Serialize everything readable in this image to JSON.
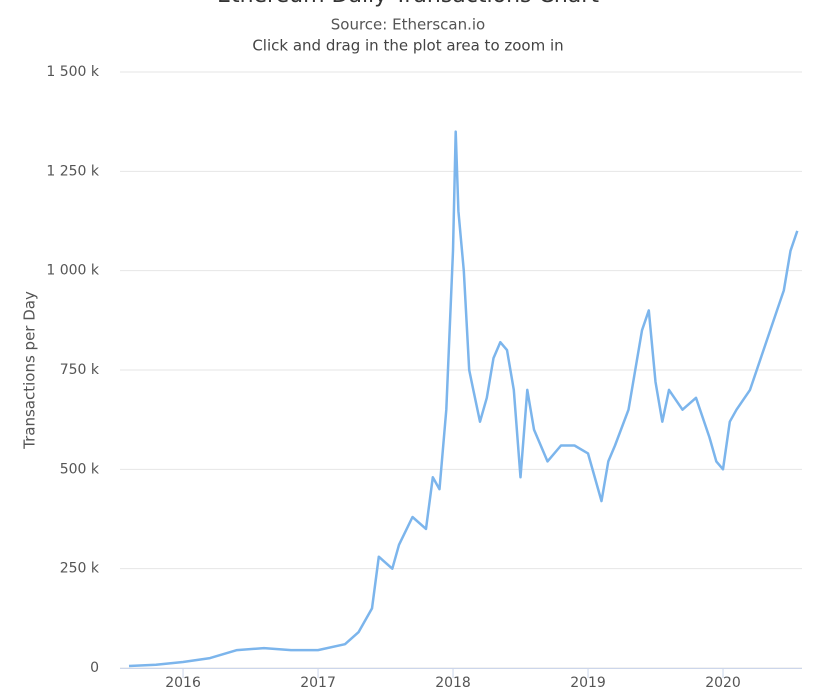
{
  "chart_data": {
    "type": "line",
    "title": "Ethereum Daily Transactions Chart",
    "subtitle": "Source: Etherscan.io",
    "caption": "Click and drag in the plot area to zoom in",
    "y_label": "Transactions per Day",
    "grid": true,
    "color": "#7cb5ec",
    "xlim": [
      2015.533,
      2020.585
    ],
    "xticks": [
      2016,
      2017,
      2018,
      2019,
      2020
    ],
    "ylim": [
      0,
      1500000
    ],
    "yticks": [
      {
        "value": 0,
        "label": "0"
      },
      {
        "value": 250000,
        "label": "250 k"
      },
      {
        "value": 500000,
        "label": "500 k"
      },
      {
        "value": 750000,
        "label": "750 k"
      },
      {
        "value": 1000000,
        "label": "1 000 k"
      },
      {
        "value": 1250000,
        "label": "1 250 k"
      },
      {
        "value": 1500000,
        "label": "1 500 k"
      }
    ],
    "x": [
      2015.6,
      2015.8,
      2016.0,
      2016.2,
      2016.4,
      2016.6,
      2016.8,
      2017.0,
      2017.2,
      2017.3,
      2017.4,
      2017.45,
      2017.55,
      2017.6,
      2017.7,
      2017.8,
      2017.85,
      2017.9,
      2017.95,
      2018.0,
      2018.02,
      2018.04,
      2018.08,
      2018.12,
      2018.15,
      2018.2,
      2018.25,
      2018.3,
      2018.35,
      2018.4,
      2018.45,
      2018.5,
      2018.55,
      2018.6,
      2018.7,
      2018.8,
      2018.9,
      2019.0,
      2019.1,
      2019.15,
      2019.2,
      2019.3,
      2019.4,
      2019.45,
      2019.5,
      2019.55,
      2019.6,
      2019.7,
      2019.8,
      2019.9,
      2019.95,
      2020.0,
      2020.05,
      2020.1,
      2020.2,
      2020.3,
      2020.4,
      2020.45,
      2020.5,
      2020.55
    ],
    "values": [
      5000,
      8000,
      15000,
      25000,
      45000,
      50000,
      45000,
      45000,
      60000,
      90000,
      150000,
      280000,
      250000,
      310000,
      380000,
      350000,
      480000,
      450000,
      650000,
      1050000,
      1350000,
      1150000,
      1000000,
      750000,
      700000,
      620000,
      680000,
      780000,
      820000,
      800000,
      700000,
      480000,
      700000,
      600000,
      520000,
      560000,
      560000,
      540000,
      420000,
      520000,
      560000,
      650000,
      850000,
      900000,
      720000,
      620000,
      700000,
      650000,
      680000,
      580000,
      520000,
      500000,
      620000,
      650000,
      700000,
      800000,
      900000,
      950000,
      1050000,
      1100000
    ]
  }
}
